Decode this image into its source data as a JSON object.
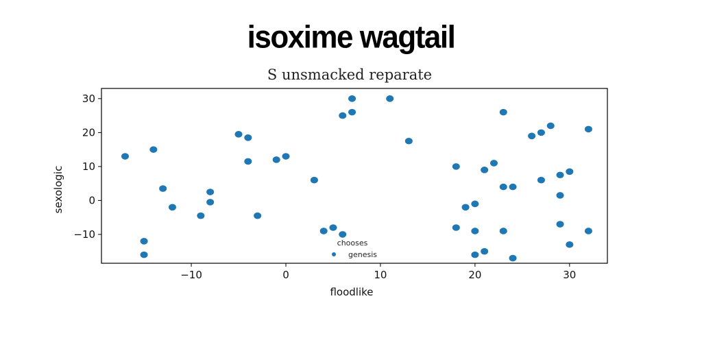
{
  "header": {
    "title": "isoxime wagtail"
  },
  "chart_data": {
    "type": "scatter",
    "title": "S unsmacked reparate",
    "xlabel": "floodlike",
    "ylabel": "sexologic",
    "xlim": [
      -19.5,
      34
    ],
    "ylim": [
      -18.5,
      33
    ],
    "xticks": [
      -10,
      0,
      10,
      20,
      30
    ],
    "yticks": [
      -10,
      0,
      10,
      20,
      30
    ],
    "xtick_labels": [
      "−10",
      "0",
      "10",
      "20",
      "30"
    ],
    "ytick_labels": [
      "−10",
      "0",
      "10",
      "20",
      "30"
    ],
    "grid": false,
    "legend": {
      "title": "chooses",
      "placement": "lower-center"
    },
    "series": [
      {
        "name": "genesis",
        "color": "#1f77b4",
        "points": [
          [
            -17,
            13
          ],
          [
            -14,
            15
          ],
          [
            -13,
            3.5
          ],
          [
            -12,
            -2
          ],
          [
            -15,
            -12
          ],
          [
            -15,
            -16
          ],
          [
            -9,
            -4.5
          ],
          [
            -8,
            2.5
          ],
          [
            -8,
            -0.5
          ],
          [
            -5,
            19.5
          ],
          [
            -4,
            18.5
          ],
          [
            -4,
            11.5
          ],
          [
            -3,
            -4.5
          ],
          [
            -1,
            12
          ],
          [
            0,
            13
          ],
          [
            3,
            6
          ],
          [
            4,
            -9
          ],
          [
            5,
            -8
          ],
          [
            6,
            -10
          ],
          [
            6,
            25
          ],
          [
            7,
            26
          ],
          [
            7,
            30
          ],
          [
            11,
            30
          ],
          [
            13,
            17.5
          ],
          [
            18,
            10
          ],
          [
            18,
            -8
          ],
          [
            19,
            -2
          ],
          [
            20,
            -1
          ],
          [
            20,
            -9
          ],
          [
            20,
            -16
          ],
          [
            21,
            9
          ],
          [
            21,
            -15
          ],
          [
            22,
            11
          ],
          [
            23,
            4
          ],
          [
            23,
            -9
          ],
          [
            23,
            26
          ],
          [
            24,
            4
          ],
          [
            24,
            -17
          ],
          [
            26,
            19
          ],
          [
            27,
            20
          ],
          [
            27,
            6
          ],
          [
            28,
            22
          ],
          [
            29,
            7.5
          ],
          [
            29,
            1.5
          ],
          [
            29,
            -7
          ],
          [
            30,
            8.5
          ],
          [
            30,
            -13
          ],
          [
            32,
            21
          ],
          [
            32,
            -9
          ]
        ]
      }
    ]
  }
}
